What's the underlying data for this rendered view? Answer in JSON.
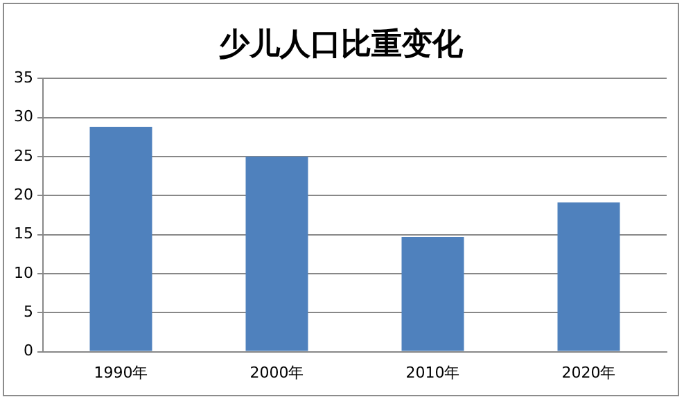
{
  "chart_data": {
    "type": "bar",
    "title": "少儿人口比重变化",
    "categories": [
      "1990年",
      "2000年",
      "2010年",
      "2020年"
    ],
    "values": [
      28.8,
      25.0,
      14.7,
      19.1
    ],
    "color": "#4f81bd",
    "ylim": [
      0,
      35
    ],
    "yticks": [
      0,
      5,
      10,
      15,
      20,
      25,
      30,
      35
    ],
    "grid": "y",
    "legend": false
  }
}
